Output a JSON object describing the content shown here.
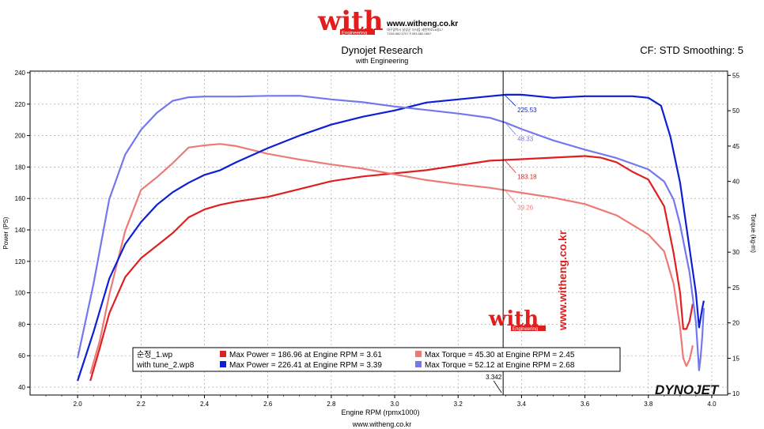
{
  "header": {
    "logo_text": "with",
    "logo_sub": "Engineering",
    "site_url": "www.witheng.co.kr",
    "contact_line1": "대구광역시 달성군 다사읍 세천북로16길17",
    "contact_line2": "T.053.582.0707 F.053.582.0807"
  },
  "watermark": {
    "logo_text": "with",
    "logo_sub": "Engineering",
    "vertical_url": "www.witheng.co.kr"
  },
  "footer": {
    "url": "www.witheng.co.kr",
    "brand": "DYNOJET"
  },
  "colors": {
    "power1": "#e02020",
    "torque1": "#ee7a78",
    "power2": "#0a1fd6",
    "torque2": "#7478ee",
    "axis": "#000000",
    "grid": "#9a9a9a",
    "bg": "#ffffff",
    "legend_bg": "#ffffff"
  },
  "chart_data": {
    "type": "line",
    "title": "Dynojet Research",
    "subtitle": "with Engineering",
    "top_right": "CF: STD Smoothing: 5",
    "xlabel": "Engine RPM (rpmx1000)",
    "ylabel_left": "Power (PS)",
    "ylabel_right": "Torque (kg-m)",
    "xlim": [
      1.85,
      4.05
    ],
    "ylim_left": [
      35,
      241
    ],
    "ylim_right": [
      9.8,
      55.6
    ],
    "x_ticks": [
      "2.0",
      "2.2",
      "2.4",
      "2.6",
      "2.8",
      "3.0",
      "3.2",
      "3.4",
      "3.6",
      "3.8",
      "4.0"
    ],
    "y_ticks_left": [
      "40",
      "60",
      "80",
      "100",
      "120",
      "140",
      "160",
      "180",
      "200",
      "220",
      "240"
    ],
    "y_ticks_right": [
      "10",
      "15",
      "20",
      "25",
      "30",
      "35",
      "40",
      "45",
      "50",
      "55"
    ],
    "grid": true,
    "legend_position": "bottom-center",
    "cursor": {
      "x": 3.342,
      "label": "3.342"
    },
    "cursor_labels": [
      {
        "series": "power2",
        "text": "225.53"
      },
      {
        "series": "torque2",
        "text": "48.33"
      },
      {
        "series": "power1",
        "text": "183.18"
      },
      {
        "series": "torque1",
        "text": "39.26"
      }
    ],
    "legend": [
      {
        "file": "순정_1.wp",
        "power_text": "Max Power = 186.96 at Engine RPM = 3.61",
        "torque_text": "Max Torque = 45.30 at Engine RPM = 2.45"
      },
      {
        "file": "with tune_2.wp8",
        "power_text": "Max Power = 226.41 at Engine RPM = 3.39",
        "torque_text": "Max Torque = 52.12 at Engine RPM = 2.68"
      }
    ],
    "series": [
      {
        "name": "순정_1.wp",
        "key": "power1",
        "axis": "left",
        "x": [
          2.04,
          2.07,
          2.1,
          2.15,
          2.2,
          2.25,
          2.3,
          2.35,
          2.4,
          2.45,
          2.5,
          2.6,
          2.7,
          2.8,
          2.9,
          3.0,
          3.1,
          3.2,
          3.3,
          3.4,
          3.5,
          3.6,
          3.65,
          3.7,
          3.75,
          3.8,
          3.85,
          3.88,
          3.9,
          3.91,
          3.92,
          3.93,
          3.94
        ],
        "y": [
          44,
          65,
          87,
          110,
          122,
          130,
          138,
          148,
          153,
          156,
          158,
          161,
          166,
          171,
          174,
          176,
          178,
          181,
          184,
          185,
          186,
          187,
          186,
          183,
          177,
          172,
          155,
          125,
          100,
          77,
          77,
          82,
          93
        ]
      },
      {
        "name": "순정_1.wp",
        "key": "torque1",
        "axis": "right",
        "x": [
          2.04,
          2.07,
          2.1,
          2.15,
          2.2,
          2.25,
          2.3,
          2.35,
          2.4,
          2.45,
          2.5,
          2.6,
          2.7,
          2.8,
          2.9,
          3.0,
          3.1,
          3.2,
          3.3,
          3.4,
          3.5,
          3.6,
          3.7,
          3.8,
          3.85,
          3.88,
          3.9,
          3.91,
          3.92,
          3.93,
          3.94
        ],
        "y": [
          12.8,
          17.5,
          24,
          33,
          38.8,
          40.6,
          42.6,
          44.8,
          45.1,
          45.3,
          45.0,
          43.9,
          43.1,
          42.4,
          41.8,
          41.0,
          40.2,
          39.6,
          39.1,
          38.4,
          37.7,
          36.8,
          35.2,
          32.5,
          30.1,
          25.5,
          19.3,
          15.0,
          13.9,
          14.8,
          16.8
        ]
      },
      {
        "name": "with tune_2.wp8",
        "key": "power2",
        "axis": "left",
        "x": [
          2.0,
          2.05,
          2.1,
          2.15,
          2.2,
          2.25,
          2.3,
          2.35,
          2.4,
          2.45,
          2.5,
          2.6,
          2.7,
          2.8,
          2.9,
          3.0,
          3.1,
          3.2,
          3.3,
          3.35,
          3.4,
          3.45,
          3.5,
          3.6,
          3.7,
          3.75,
          3.8,
          3.84,
          3.87,
          3.9,
          3.93,
          3.95,
          3.96,
          3.97,
          3.975
        ],
        "y": [
          44,
          75,
          109,
          131,
          145,
          156,
          164,
          170,
          175,
          178,
          183,
          192,
          200,
          207,
          212,
          216,
          221,
          223,
          225,
          226,
          226,
          225,
          224,
          225,
          225,
          225,
          224,
          219,
          199,
          170,
          128,
          100,
          78,
          90,
          95
        ]
      },
      {
        "name": "with tune_2.wp8",
        "key": "torque2",
        "axis": "right",
        "x": [
          2.0,
          2.05,
          2.1,
          2.15,
          2.2,
          2.25,
          2.3,
          2.35,
          2.4,
          2.5,
          2.6,
          2.7,
          2.8,
          2.9,
          3.0,
          3.1,
          3.2,
          3.3,
          3.35,
          3.4,
          3.5,
          3.6,
          3.7,
          3.8,
          3.85,
          3.88,
          3.9,
          3.93,
          3.95,
          3.96,
          3.965,
          3.97,
          3.975
        ],
        "y": [
          15,
          25.5,
          37.5,
          43.8,
          47.3,
          49.7,
          51.4,
          51.9,
          52.0,
          52.0,
          52.1,
          52.12,
          51.6,
          51.2,
          50.6,
          50.1,
          49.6,
          49.0,
          48.3,
          47.4,
          45.8,
          44.5,
          43.3,
          41.7,
          40.0,
          37.4,
          33.9,
          27.1,
          20.1,
          13.3,
          15.2,
          18.0,
          22.1
        ]
      }
    ]
  }
}
